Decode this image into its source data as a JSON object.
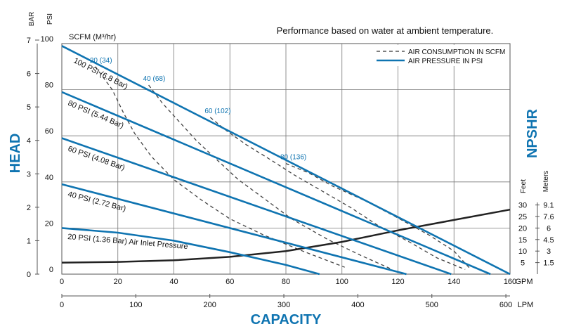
{
  "chart_data": {
    "type": "line",
    "note": "Performance based on water at ambient temperature.",
    "left_axis": {
      "bar_unit": "BAR",
      "psi_unit": "PSI",
      "bar_ticks": [
        0,
        1,
        2,
        3,
        4,
        5,
        6,
        7
      ],
      "psi_ticks": [
        0,
        20,
        40,
        60,
        80,
        100
      ],
      "title": "HEAD"
    },
    "right_axis": {
      "title": "NPSHR",
      "feet_unit": "Feet",
      "meters_unit": "Meters",
      "feet_ticks": [
        5,
        10,
        15,
        20,
        25,
        30
      ],
      "meter_ticks": [
        "1.5",
        "3",
        "4.5",
        "6",
        "7.6",
        "9.1"
      ]
    },
    "x_axis": {
      "gpm_unit": "GPM",
      "lpm_unit": "LPM",
      "gpm_ticks": [
        0,
        20,
        40,
        60,
        80,
        100,
        120,
        140,
        160
      ],
      "lpm_ticks": [
        0,
        100,
        200,
        300,
        400,
        500,
        600
      ],
      "title": "CAPACITY",
      "xlim_gpm": [
        0,
        160
      ],
      "ylim_psi": [
        0,
        100
      ]
    },
    "scfm_label": "SCFM (M³/hr)",
    "legend": {
      "dashed": "AIR CONSUMPTION IN SCFM",
      "solid": "AIR PRESSURE IN PSI"
    },
    "series": [
      {
        "name": "100 PSI (6.8 Bar)",
        "x": [
          0,
          160
        ],
        "y": [
          99,
          0
        ]
      },
      {
        "name": "80 PSI (5.44 Bar)",
        "x": [
          0,
          153
        ],
        "y": [
          79,
          0
        ]
      },
      {
        "name": "60 PSI (4.08 Bar)",
        "x": [
          0,
          139
        ],
        "y": [
          59,
          0
        ]
      },
      {
        "name": "40 PSI (2.72 Bar)",
        "x": [
          0,
          123
        ],
        "y": [
          39,
          0
        ]
      },
      {
        "name": "20 PSI (1.36 Bar) Air Inlet Pressure",
        "x": [
          0,
          20,
          40,
          60,
          80,
          92
        ],
        "y": [
          20,
          18,
          14.5,
          9.5,
          4,
          0
        ]
      }
    ],
    "npshr_curve": {
      "x_gpm": [
        0,
        20,
        40,
        60,
        80,
        100,
        120,
        140,
        160
      ],
      "y_psi": [
        5,
        5.3,
        6,
        7.5,
        10,
        14,
        19,
        23.5,
        28
      ]
    },
    "air_consumption": [
      {
        "label": "20 (34)",
        "x": [
          12,
          18,
          22,
          26,
          32,
          40,
          50,
          60,
          72,
          86,
          101
        ],
        "y": [
          90,
          80,
          70,
          61,
          51,
          41,
          32,
          24,
          17,
          10,
          3
        ]
      },
      {
        "label": "40 (68)",
        "x": [
          31,
          36,
          42,
          48,
          55,
          63,
          72,
          82,
          95,
          107,
          118
        ],
        "y": [
          82,
          74,
          66,
          58,
          50,
          41,
          33,
          24,
          15,
          8,
          2
        ]
      },
      {
        "label": "60 (102)",
        "x": [
          53,
          59,
          66,
          74,
          83,
          93,
          103,
          113,
          124,
          134,
          144
        ],
        "y": [
          68,
          62,
          56,
          50,
          43,
          36,
          29,
          21,
          14,
          7,
          2
        ]
      },
      {
        "label": "80 (136)",
        "x": [
          80,
          88,
          97,
          108,
          119,
          131,
          140,
          146
        ],
        "y": [
          48,
          44,
          38,
          32,
          25,
          17,
          10,
          2
        ]
      }
    ]
  }
}
